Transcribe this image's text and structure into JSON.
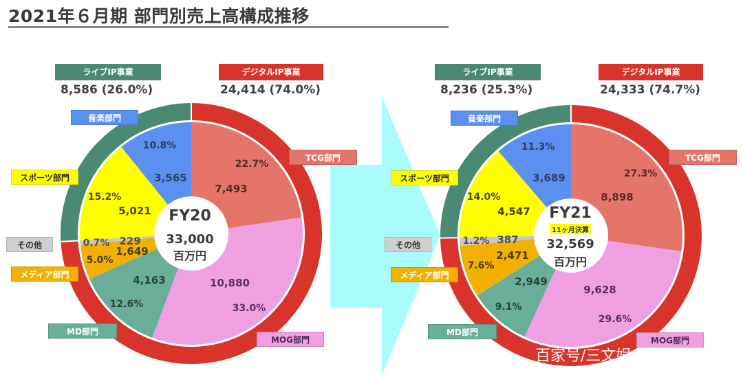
{
  "title": "2021年６月期 部門別売上高構成推移",
  "colors": {
    "live_ring": "#4a8a72",
    "digital_ring": "#d9342b",
    "tcg": "#e5756b",
    "mog": "#f0a0e0",
    "md": "#6aae9a",
    "media": "#f2b000",
    "other": "#c8c8c8",
    "sports": "#ffff00",
    "music": "#5b8ff0",
    "arrow": "#aafcfc"
  },
  "chart_data": [
    {
      "type": "pie",
      "title": "FY20",
      "total": 33000,
      "unit": "百万円",
      "groups": [
        {
          "name": "ライブIP事業",
          "value": 8586,
          "percent": 26.0
        },
        {
          "name": "デジタルIP事業",
          "value": 24414,
          "percent": 74.0
        }
      ],
      "categories": [
        "TCG部門",
        "MOG部門",
        "MD部門",
        "メディア部門",
        "その他",
        "スポーツ部門",
        "音楽部門"
      ],
      "values": [
        7493,
        10880,
        4163,
        1649,
        229,
        5021,
        3565
      ],
      "percents": [
        22.7,
        33.0,
        12.6,
        5.0,
        0.7,
        15.2,
        10.8
      ]
    },
    {
      "type": "pie",
      "title": "FY21",
      "subtitle": "11ヶ月決算",
      "total": 32569,
      "unit": "百万円",
      "groups": [
        {
          "name": "ライブIP事業",
          "value": 8236,
          "percent": 25.3
        },
        {
          "name": "デジタルIP事業",
          "value": 24333,
          "percent": 74.7
        }
      ],
      "categories": [
        "TCG部門",
        "MOG部門",
        "MD部門",
        "メディア部門",
        "その他",
        "スポーツ部門",
        "音楽部門"
      ],
      "values": [
        8898,
        9628,
        2949,
        2471,
        387,
        4547,
        3689
      ],
      "percents": [
        27.3,
        29.6,
        9.1,
        7.6,
        1.2,
        14.0,
        11.3
      ]
    }
  ],
  "fy20": {
    "live_header": "ライブIP事業",
    "live_value": "8,586",
    "live_pct": "(26.0%)",
    "digital_header": "デジタルIP事業",
    "digital_value": "24,414",
    "digital_pct": "(74.0%)",
    "center_fy": "FY20",
    "center_total": "33,000",
    "center_unit": "百万円",
    "labels": {
      "tcg_pct": "22.7%",
      "tcg_val": "7,493",
      "mog_val": "10,880",
      "mog_pct": "33.0%",
      "md_val": "4,163",
      "md_pct": "12.6%",
      "media_val": "1,649",
      "media_pct": "5.0%",
      "other_val": "229",
      "other_pct": "0.7%",
      "sports_pct": "15.2%",
      "sports_val": "5,021",
      "music_pct": "10.8%",
      "music_val": "3,565"
    }
  },
  "fy21": {
    "live_header": "ライブIP事業",
    "live_value": "8,236",
    "live_pct": "(25.3%)",
    "digital_header": "デジタルIP事業",
    "digital_value": "24,333",
    "digital_pct": "(74.7%)",
    "center_fy": "FY21",
    "center_sub": "11ヶ月決算",
    "center_total": "32,569",
    "center_unit": "百万円",
    "labels": {
      "tcg_pct": "27.3%",
      "tcg_val": "8,898",
      "mog_val": "9,628",
      "mog_pct": "29.6%",
      "md_val": "2,949",
      "md_pct": "9.1%",
      "media_val": "2,471",
      "media_pct": "7.6%",
      "other_val": "387",
      "other_pct": "1.2%",
      "sports_pct": "14.0%",
      "sports_val": "4,547",
      "music_pct": "11.3%",
      "music_val": "3,689"
    }
  },
  "tags": {
    "music": "音楽部門",
    "sports": "スポーツ部門",
    "other": "その他",
    "media": "メディア部門",
    "md": "MD部門",
    "tcg": "TCG部門",
    "mog": "MOG部門"
  },
  "watermark": "百家号/三文娱 ..."
}
